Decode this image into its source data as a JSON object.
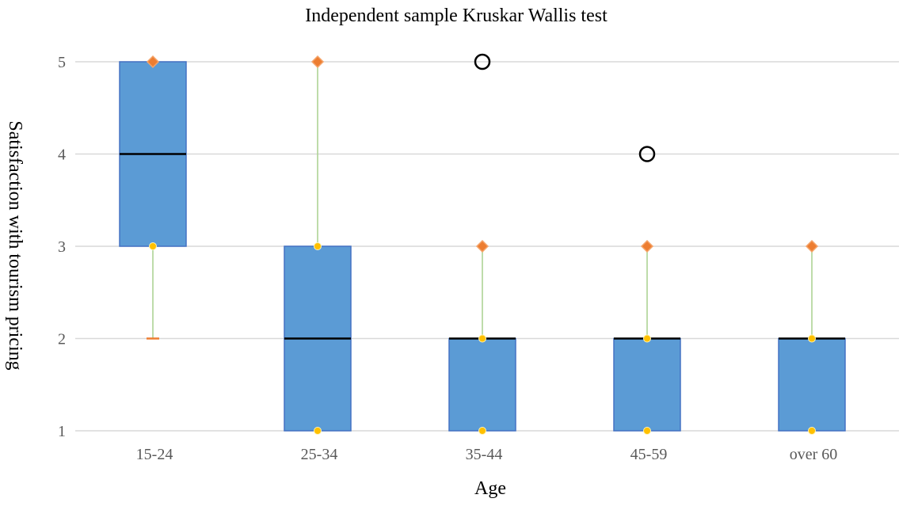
{
  "chart_data": {
    "type": "boxplot",
    "title": "Independent sample Kruskar Wallis test",
    "xlabel": "Age",
    "ylabel": "Satisfaction with tourism pricing",
    "ylim": [
      1,
      5
    ],
    "yticks": [
      1,
      2,
      3,
      4,
      5
    ],
    "grid": true,
    "categories": [
      "15-24",
      "25-34",
      "35-44",
      "45-59",
      "over 60"
    ],
    "boxes": [
      {
        "category": "15-24",
        "min": 2,
        "q1": 3,
        "median": 4,
        "q3": 5,
        "max": 5,
        "outliers": []
      },
      {
        "category": "25-34",
        "min": 1,
        "q1": 1,
        "median": 2,
        "q3": 3,
        "max": 5,
        "outliers": []
      },
      {
        "category": "35-44",
        "min": 1,
        "q1": 1,
        "median": 2,
        "q3": 2,
        "max": 3,
        "outliers": [
          5
        ]
      },
      {
        "category": "45-59",
        "min": 1,
        "q1": 1,
        "median": 2,
        "q3": 2,
        "max": 3,
        "outliers": [
          4
        ]
      },
      {
        "category": "over 60",
        "min": 1,
        "q1": 1,
        "median": 2,
        "q3": 2,
        "max": 3,
        "outliers": []
      }
    ],
    "colors": {
      "box_fill": "#5b9bd5",
      "box_border": "#4472c4",
      "median": "#000000",
      "whisker": "#a9d18e",
      "max_marker": "#ed7d31",
      "quartile_marker": "#ffc000",
      "min_cap": "#ed7d31",
      "outlier": "#000000",
      "grid": "#d9d9d9",
      "tick_text": "#595959"
    }
  }
}
